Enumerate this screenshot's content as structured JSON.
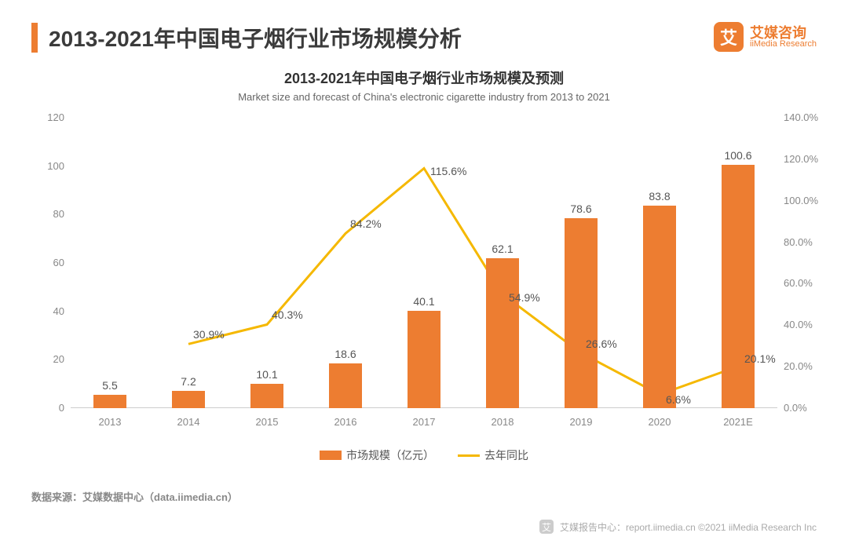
{
  "header": {
    "page_title": "2013-2021年中国电子烟行业市场规模分析",
    "logo_cn": "艾媒咨询",
    "logo_en": "iiMedia Research",
    "logo_glyph": "艾"
  },
  "chart": {
    "type": "bar+line",
    "title_cn": "2013-2021年中国电子烟行业市场规模及预测",
    "title_en": "Market size and forecast of China's electronic cigarette industry from 2013 to 2021",
    "categories": [
      "2013",
      "2014",
      "2015",
      "2016",
      "2017",
      "2018",
      "2019",
      "2020",
      "2021E"
    ],
    "bar_series": {
      "name": "市场规模（亿元）",
      "values": [
        5.5,
        7.2,
        10.1,
        18.6,
        40.1,
        62.1,
        78.6,
        83.8,
        100.6
      ],
      "labels": [
        "5.5",
        "7.2",
        "10.1",
        "18.6",
        "40.1",
        "62.1",
        "78.6",
        "83.8",
        "100.6"
      ],
      "color": "#ed7d31",
      "bar_width_ratio": 0.42
    },
    "line_series": {
      "name": "去年同比",
      "values": [
        null,
        30.9,
        40.3,
        84.2,
        115.6,
        54.9,
        26.6,
        6.6,
        20.1
      ],
      "labels": [
        "",
        "30.9%",
        "40.3%",
        "84.2%",
        "115.6%",
        "54.9%",
        "26.6%",
        "6.6%",
        "20.1%"
      ],
      "color": "#f5b800",
      "line_width": 3
    },
    "y_left": {
      "min": 0,
      "max": 120,
      "step": 20,
      "ticks": [
        0,
        20,
        40,
        60,
        80,
        100,
        120
      ]
    },
    "y_right": {
      "min": 0,
      "max": 140,
      "step": 20,
      "tick_labels": [
        "0.0%",
        "20.0%",
        "40.0%",
        "60.0%",
        "80.0%",
        "100.0%",
        "120.0%",
        "140.0%"
      ],
      "tick_values": [
        0,
        20,
        40,
        60,
        80,
        100,
        120,
        140
      ]
    },
    "background_color": "#ffffff",
    "text_color": "#555555",
    "axis_color": "#888888",
    "title_fontsize_cn": 18,
    "title_fontsize_en": 13,
    "label_fontsize": 14,
    "tick_fontsize": 13
  },
  "legend": {
    "bar_label": "市场规模（亿元）",
    "line_label": "去年同比"
  },
  "source": "数据来源：艾媒数据中心（data.iimedia.cn）",
  "footer": {
    "text": "艾媒报告中心：report.iimedia.cn  ©2021  iiMedia Research  Inc",
    "icon_glyph": "艾"
  }
}
